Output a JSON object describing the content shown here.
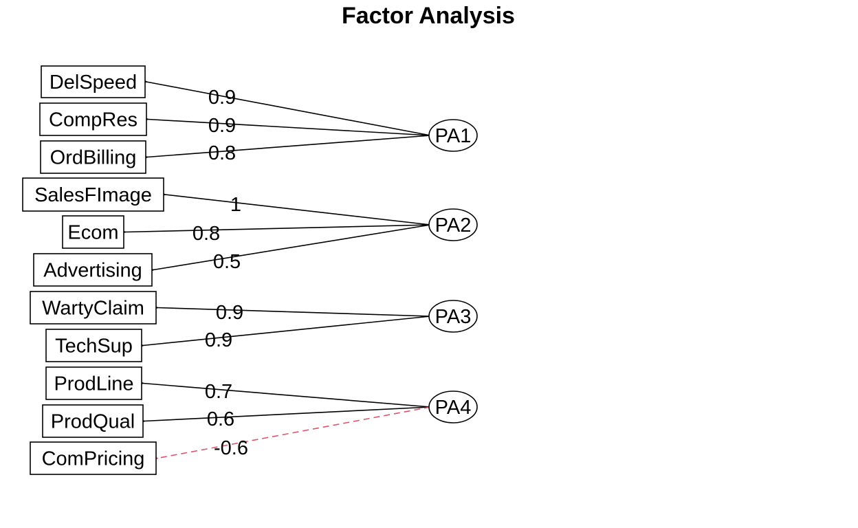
{
  "title": "Factor Analysis",
  "colors": {
    "positive": "#000000",
    "negative": "#DF536B"
  },
  "variables": [
    {
      "id": "DelSpeed",
      "label": "DelSpeed"
    },
    {
      "id": "CompRes",
      "label": "CompRes"
    },
    {
      "id": "OrdBilling",
      "label": "OrdBilling"
    },
    {
      "id": "SalesFImage",
      "label": "SalesFImage"
    },
    {
      "id": "Ecom",
      "label": "Ecom"
    },
    {
      "id": "Advertising",
      "label": "Advertising"
    },
    {
      "id": "WartyClaim",
      "label": "WartyClaim"
    },
    {
      "id": "TechSup",
      "label": "TechSup"
    },
    {
      "id": "ProdLine",
      "label": "ProdLine"
    },
    {
      "id": "ProdQual",
      "label": "ProdQual"
    },
    {
      "id": "ComPricing",
      "label": "ComPricing"
    }
  ],
  "factors": [
    {
      "id": "PA1",
      "label": "PA1"
    },
    {
      "id": "PA2",
      "label": "PA2"
    },
    {
      "id": "PA3",
      "label": "PA3"
    },
    {
      "id": "PA4",
      "label": "PA4"
    }
  ],
  "loadings": [
    {
      "factor": "PA1",
      "variable": "DelSpeed",
      "value": 0.9,
      "label": "0.9"
    },
    {
      "factor": "PA1",
      "variable": "CompRes",
      "value": 0.9,
      "label": "0.9"
    },
    {
      "factor": "PA1",
      "variable": "OrdBilling",
      "value": 0.8,
      "label": "0.8"
    },
    {
      "factor": "PA2",
      "variable": "SalesFImage",
      "value": 1,
      "label": "1"
    },
    {
      "factor": "PA2",
      "variable": "Ecom",
      "value": 0.8,
      "label": "0.8"
    },
    {
      "factor": "PA2",
      "variable": "Advertising",
      "value": 0.5,
      "label": "0.5"
    },
    {
      "factor": "PA3",
      "variable": "WartyClaim",
      "value": 0.9,
      "label": "0.9"
    },
    {
      "factor": "PA3",
      "variable": "TechSup",
      "value": 0.9,
      "label": "0.9"
    },
    {
      "factor": "PA4",
      "variable": "ProdLine",
      "value": 0.7,
      "label": "0.7"
    },
    {
      "factor": "PA4",
      "variable": "ProdQual",
      "value": 0.6,
      "label": "0.6"
    },
    {
      "factor": "PA4",
      "variable": "ComPricing",
      "value": -0.6,
      "label": "-0.6"
    }
  ]
}
